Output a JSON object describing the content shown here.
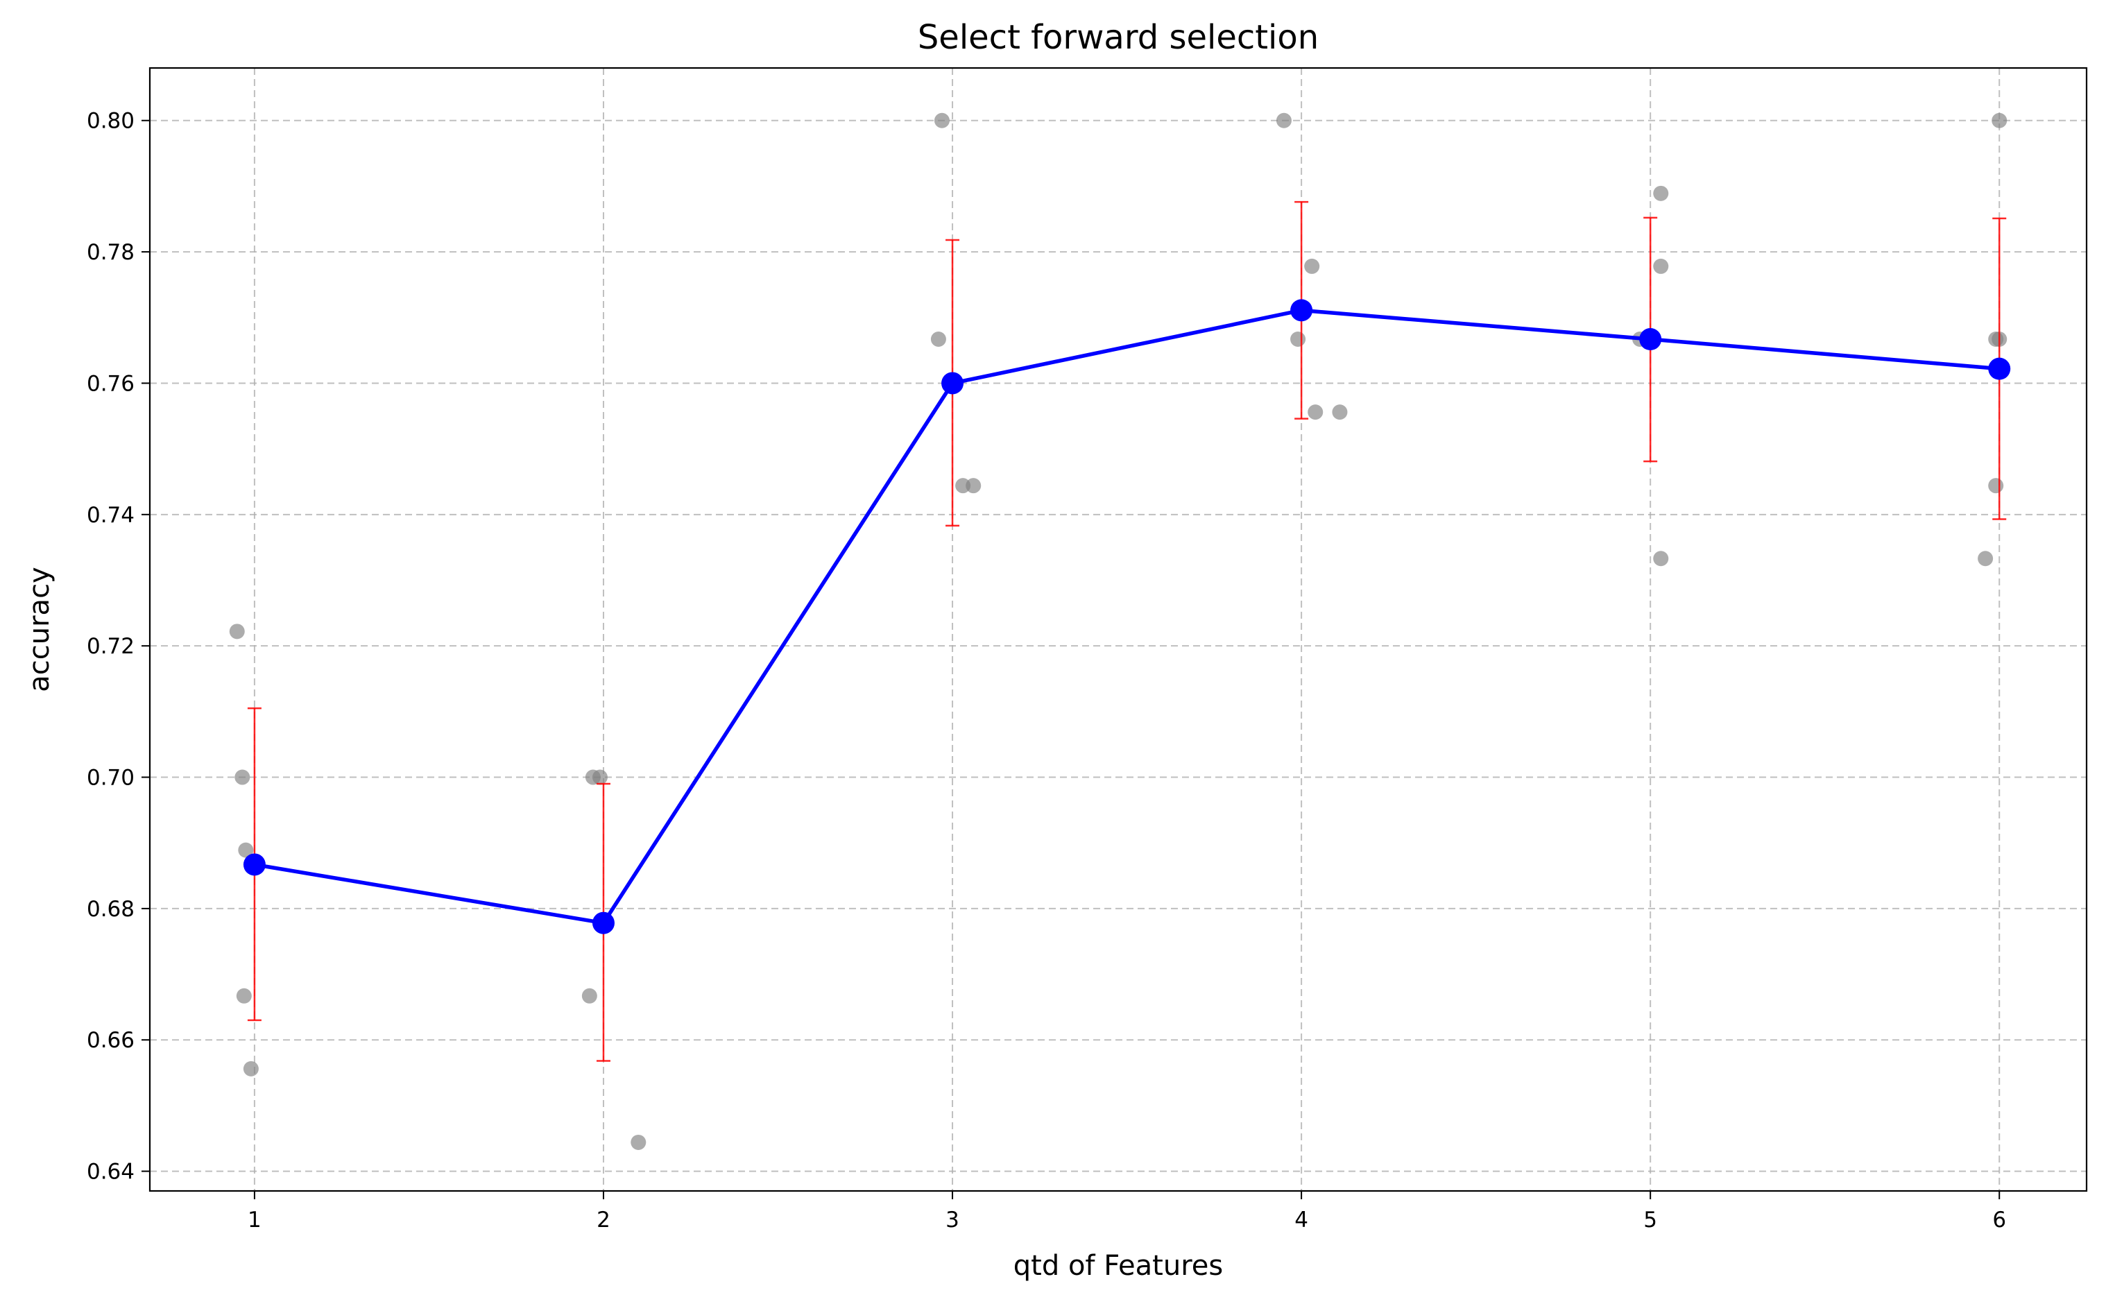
{
  "chart_data": {
    "type": "line",
    "title": "Select forward selection",
    "xlabel": "qtd of Features",
    "ylabel": "accuracy",
    "xlim": [
      0.7,
      6.25
    ],
    "ylim": [
      0.637,
      0.808
    ],
    "x_ticks": [
      1,
      2,
      3,
      4,
      5,
      6
    ],
    "y_ticks": [
      0.64,
      0.66,
      0.68,
      0.7,
      0.72,
      0.74,
      0.76,
      0.78,
      0.8
    ],
    "y_tick_labels": [
      "0.64",
      "0.66",
      "0.68",
      "0.70",
      "0.72",
      "0.74",
      "0.76",
      "0.78",
      "0.80"
    ],
    "grid": true,
    "colors": {
      "mean_line": "#0000ff",
      "error_bars": "#ff0000",
      "scatter": "#808080"
    },
    "series": [
      {
        "type": "line",
        "x": [
          1,
          2,
          3,
          4,
          5,
          6
        ],
        "y": [
          0.6867,
          0.6778,
          0.76,
          0.7711,
          0.7667,
          0.7622
        ],
        "error_low": [
          0.663,
          0.6568,
          0.7383,
          0.7546,
          0.7481,
          0.7393
        ],
        "error_high": [
          0.7105,
          0.699,
          0.7818,
          0.7876,
          0.7852,
          0.7851
        ]
      },
      {
        "type": "scatter",
        "points": [
          [
            0.95,
            0.7222
          ],
          [
            0.965,
            0.7
          ],
          [
            0.975,
            0.6889
          ],
          [
            0.97,
            0.6667
          ],
          [
            0.99,
            0.6556
          ],
          [
            1.97,
            0.7
          ],
          [
            1.99,
            0.7
          ],
          [
            1.96,
            0.6667
          ],
          [
            2.1,
            0.6444
          ],
          [
            2.97,
            0.8
          ],
          [
            2.96,
            0.7667
          ],
          [
            3.03,
            0.7444
          ],
          [
            3.06,
            0.7444
          ],
          [
            3.95,
            0.8
          ],
          [
            4.03,
            0.7778
          ],
          [
            3.99,
            0.7667
          ],
          [
            4.04,
            0.7556
          ],
          [
            4.11,
            0.7556
          ],
          [
            5.03,
            0.7889
          ],
          [
            5.03,
            0.7778
          ],
          [
            4.97,
            0.7667
          ],
          [
            5.03,
            0.7333
          ],
          [
            6.0,
            0.8
          ],
          [
            5.99,
            0.7667
          ],
          [
            6.0,
            0.7667
          ],
          [
            5.99,
            0.7444
          ],
          [
            5.96,
            0.7333
          ]
        ]
      }
    ]
  }
}
